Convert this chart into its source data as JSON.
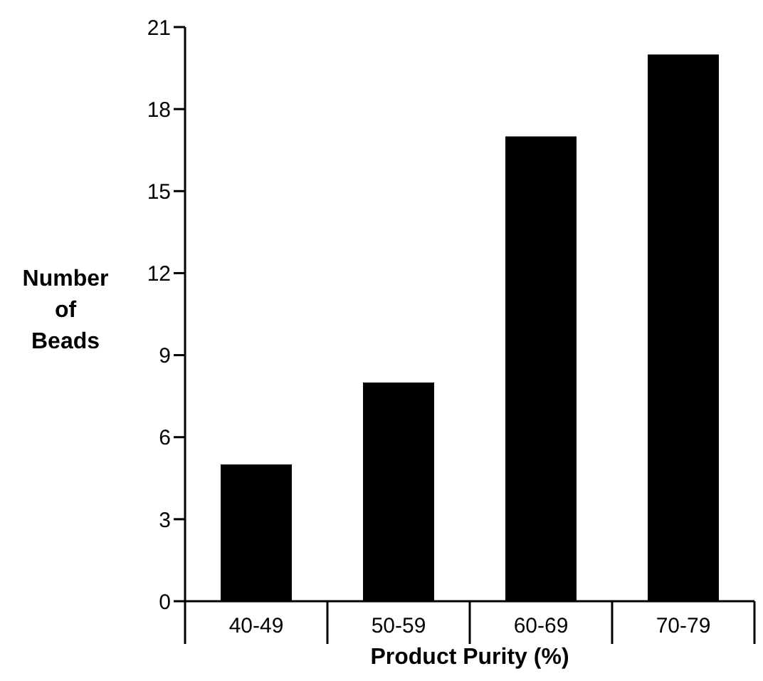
{
  "chart_data": {
    "type": "bar",
    "xlabel": "Product Purity (%)",
    "ylabel": "Number of Beads",
    "categories": [
      "40-49",
      "50-59",
      "60-69",
      "70-79"
    ],
    "values": [
      5,
      8,
      17,
      20
    ],
    "color": "#000000",
    "ylim": [
      0,
      21
    ],
    "yticks": [
      0,
      3,
      6,
      9,
      12,
      15,
      18,
      21
    ],
    "grid": false,
    "legend": false
  }
}
